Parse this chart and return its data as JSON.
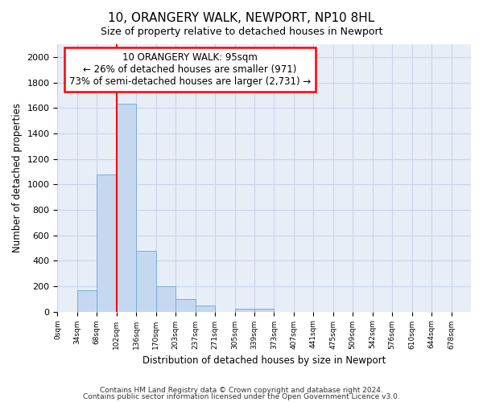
{
  "title": "10, ORANGERY WALK, NEWPORT, NP10 8HL",
  "subtitle": "Size of property relative to detached houses in Newport",
  "xlabel": "Distribution of detached houses by size in Newport",
  "ylabel": "Number of detached properties",
  "bar_values": [
    0,
    165,
    1080,
    1630,
    480,
    200,
    100,
    45,
    0,
    25,
    20,
    0,
    0,
    0,
    0,
    0,
    0,
    0,
    0,
    0,
    0
  ],
  "bar_color": "#c5d8f0",
  "bar_edge_color": "#7aafd4",
  "tick_labels": [
    "0sqm",
    "34sqm",
    "68sqm",
    "102sqm",
    "136sqm",
    "170sqm",
    "203sqm",
    "237sqm",
    "271sqm",
    "305sqm",
    "339sqm",
    "373sqm",
    "407sqm",
    "441sqm",
    "475sqm",
    "509sqm",
    "542sqm",
    "576sqm",
    "610sqm",
    "644sqm",
    "678sqm"
  ],
  "ylim": [
    0,
    2100
  ],
  "yticks": [
    0,
    200,
    400,
    600,
    800,
    1000,
    1200,
    1400,
    1600,
    1800,
    2000
  ],
  "red_line_x": 3,
  "annotation_text_line1": "10 ORANGERY WALK: 95sqm",
  "annotation_text_line2": "← 26% of detached houses are smaller (971)",
  "annotation_text_line3": "73% of semi-detached houses are larger (2,731) →",
  "annotation_box_color": "white",
  "annotation_box_edgecolor": "red",
  "red_line_color": "red",
  "grid_color": "#c8d4e8",
  "background_color": "#e8eef8",
  "footnote1": "Contains HM Land Registry data © Crown copyright and database right 2024.",
  "footnote2": "Contains public sector information licensed under the Open Government Licence v3.0."
}
